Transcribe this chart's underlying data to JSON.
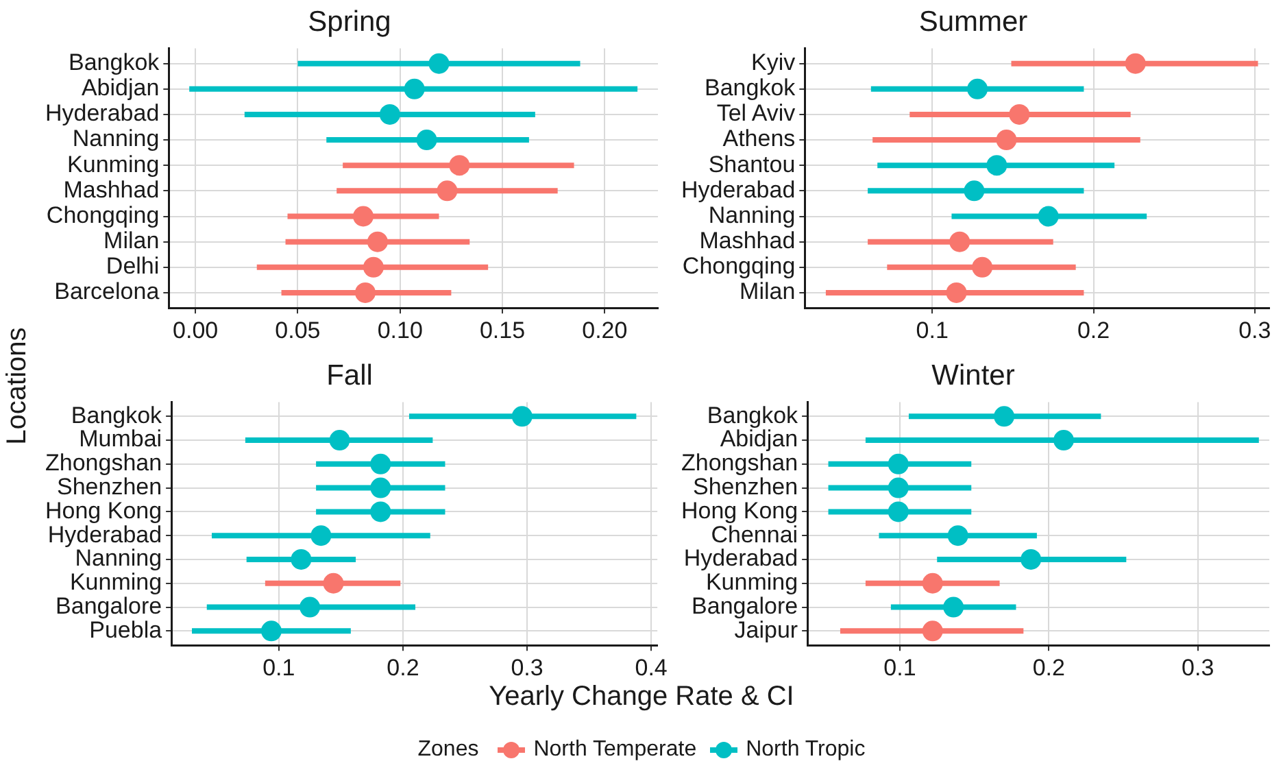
{
  "chart_data": [
    {
      "type": "scatter",
      "orientation": "horizontal",
      "title": "Spring",
      "ylabel": "Locations",
      "legend": "bottom",
      "legend_title": "Zones",
      "grid": true,
      "marker": "circle",
      "categories": [
        "Bangkok",
        "Abidjan",
        "Hyderabad",
        "Nanning",
        "Kunming",
        "Mashhad",
        "Chongqing",
        "Milan",
        "Delhi",
        "Barcelona"
      ],
      "xlim": [
        -0.013,
        0.226
      ],
      "xticks": [
        {
          "value": 0,
          "label": "0.00"
        },
        0.05,
        {
          "value": 0.1,
          "label": "0.10"
        },
        0.15,
        {
          "value": 0.2,
          "label": "0.20"
        }
      ],
      "series": [
        {
          "name": "North Temperate",
          "color": "#f8766d",
          "values": [
            null,
            null,
            null,
            null,
            0.129,
            0.123,
            0.082,
            0.089,
            0.087,
            0.083
          ],
          "errors": [
            null,
            null,
            null,
            null,
            [
              0.072,
              0.185
            ],
            [
              0.069,
              0.177
            ],
            [
              0.045,
              0.119
            ],
            [
              0.044,
              0.134
            ],
            [
              0.03,
              0.143
            ],
            [
              0.042,
              0.125
            ]
          ]
        },
        {
          "name": "North Tropic",
          "color": "#00bfc4",
          "values": [
            0.119,
            0.107,
            0.095,
            0.113,
            null,
            null,
            null,
            null,
            null,
            null
          ],
          "errors": [
            [
              0.05,
              0.188
            ],
            [
              -0.003,
              0.216
            ],
            [
              0.024,
              0.166
            ],
            [
              0.064,
              0.163
            ],
            null,
            null,
            null,
            null,
            null,
            null
          ]
        }
      ]
    },
    {
      "type": "scatter",
      "orientation": "horizontal",
      "title": "Summer",
      "grid": true,
      "marker": "circle",
      "categories": [
        "Kyiv",
        "Bangkok",
        "Tel Aviv",
        "Athens",
        "Shantou",
        "Hyderabad",
        "Nanning",
        "Mashhad",
        "Chongqing",
        "Milan"
      ],
      "xlim": [
        0.021,
        0.309
      ],
      "xticks": [
        0.1,
        0.2,
        0.3
      ],
      "series": [
        {
          "color": "#f8766d",
          "values": [
            0.226,
            null,
            0.154,
            0.146,
            null,
            null,
            null,
            0.117,
            0.131,
            0.115
          ],
          "errors": [
            [
              0.149,
              0.302
            ],
            null,
            [
              0.086,
              0.223
            ],
            [
              0.063,
              0.229
            ],
            null,
            null,
            null,
            [
              0.06,
              0.175
            ],
            [
              0.072,
              0.189
            ],
            [
              0.034,
              0.194
            ]
          ]
        },
        {
          "color": "#00bfc4",
          "values": [
            null,
            0.128,
            null,
            null,
            0.14,
            0.126,
            0.172,
            null,
            null,
            null
          ],
          "errors": [
            null,
            [
              0.062,
              0.194
            ],
            null,
            null,
            [
              0.066,
              0.213
            ],
            [
              0.06,
              0.194
            ],
            [
              0.112,
              0.233
            ],
            null,
            null,
            null
          ]
        }
      ]
    },
    {
      "type": "scatter",
      "orientation": "horizontal",
      "title": "Fall",
      "xlabel": "Yearly Change Rate & CI",
      "grid": true,
      "marker": "circle",
      "categories": [
        "Bangkok",
        "Mumbai",
        "Zhongshan",
        "Shenzhen",
        "Hong Kong",
        "Hyderabad",
        "Nanning",
        "Kunming",
        "Bangalore",
        "Puebla"
      ],
      "xlim": [
        0.0135,
        0.405
      ],
      "xticks": [
        0.1,
        0.2,
        0.3,
        0.4
      ],
      "series": [
        {
          "color": "#f8766d",
          "values": [
            null,
            null,
            null,
            null,
            null,
            null,
            null,
            0.144,
            null,
            null
          ],
          "errors": [
            null,
            null,
            null,
            null,
            null,
            null,
            null,
            [
              0.089,
              0.198
            ],
            null,
            null
          ]
        },
        {
          "color": "#00bfc4",
          "values": [
            0.296,
            0.149,
            0.182,
            0.182,
            0.182,
            0.134,
            0.118,
            null,
            0.125,
            0.094
          ],
          "errors": [
            [
              0.205,
              0.388
            ],
            [
              0.073,
              0.224
            ],
            [
              0.13,
              0.234
            ],
            [
              0.13,
              0.234
            ],
            [
              0.13,
              0.234
            ],
            [
              0.046,
              0.222
            ],
            [
              0.074,
              0.162
            ],
            null,
            [
              0.042,
              0.21
            ],
            [
              0.03,
              0.158
            ]
          ]
        }
      ]
    },
    {
      "type": "scatter",
      "orientation": "horizontal",
      "title": "Winter",
      "grid": true,
      "marker": "circle",
      "categories": [
        "Bangkok",
        "Abidjan",
        "Zhongshan",
        "Shenzhen",
        "Hong Kong",
        "Chennai",
        "Hyderabad",
        "Kunming",
        "Bangalore",
        "Jaipur"
      ],
      "xlim": [
        0.038,
        0.348
      ],
      "xticks": [
        0.1,
        0.2,
        0.3
      ],
      "series": [
        {
          "color": "#f8766d",
          "values": [
            null,
            null,
            null,
            null,
            null,
            null,
            null,
            0.122,
            null,
            0.122
          ],
          "errors": [
            null,
            null,
            null,
            null,
            null,
            null,
            null,
            [
              0.077,
              0.167
            ],
            null,
            [
              0.06,
              0.183
            ]
          ]
        },
        {
          "color": "#00bfc4",
          "values": [
            0.17,
            0.21,
            0.099,
            0.099,
            0.099,
            0.139,
            0.188,
            null,
            0.136,
            null
          ],
          "errors": [
            [
              0.106,
              0.235
            ],
            [
              0.077,
              0.341
            ],
            [
              0.052,
              0.148
            ],
            [
              0.052,
              0.148
            ],
            [
              0.052,
              0.148
            ],
            [
              0.086,
              0.192
            ],
            [
              0.125,
              0.252
            ],
            null,
            [
              0.094,
              0.178
            ],
            null
          ]
        }
      ]
    }
  ]
}
